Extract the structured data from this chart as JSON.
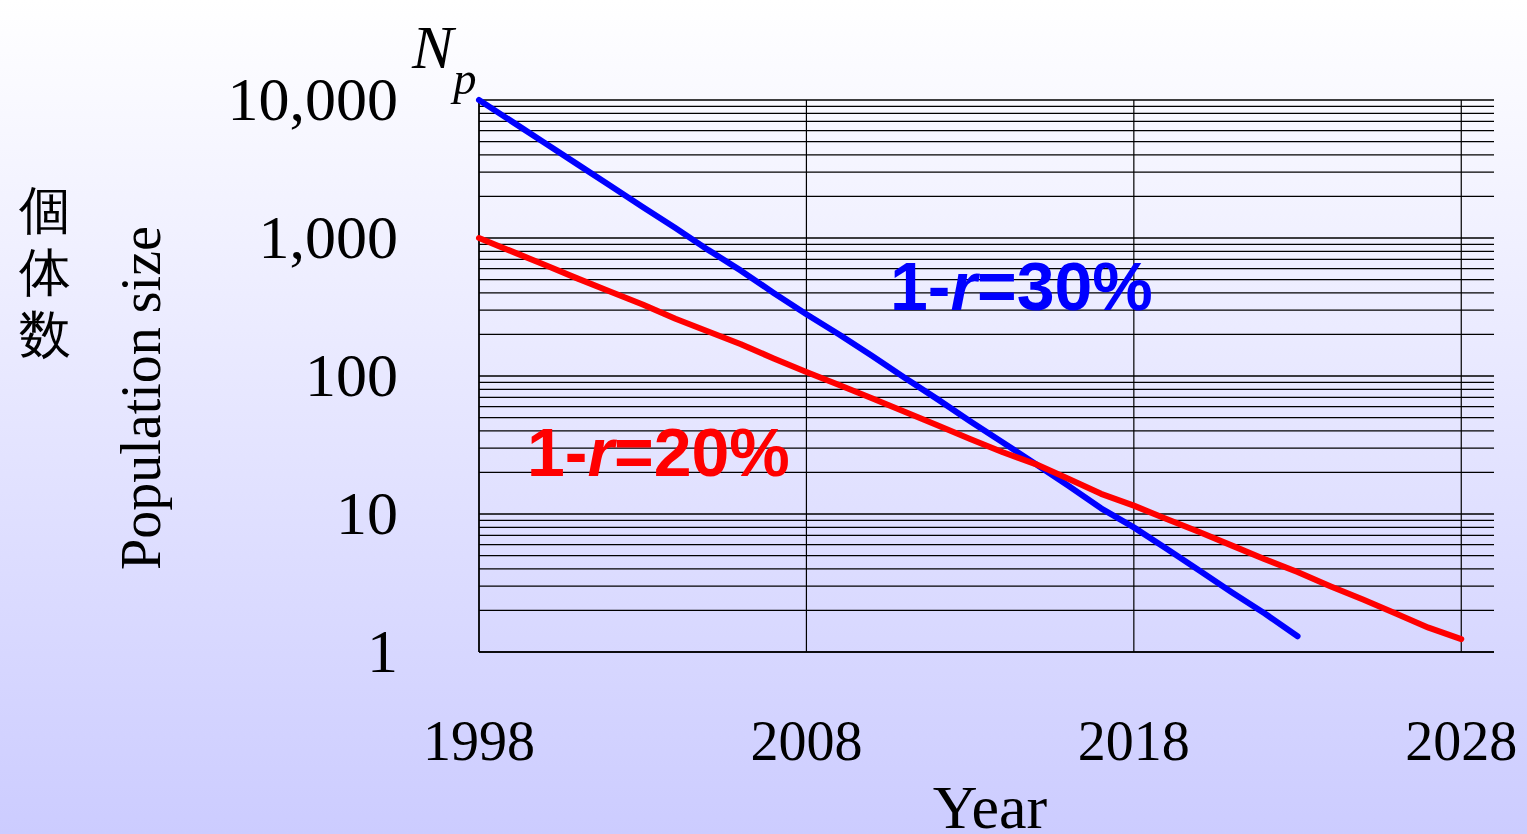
{
  "chart_data": {
    "type": "line",
    "xlabel": "Year",
    "ylabel": "Population size",
    "annotations": [
      "個体数",
      "*N*$_{p}$"
    ],
    "x": [
      1998,
      1999,
      2000,
      2001,
      2002,
      2003,
      2004,
      2005,
      2006,
      2007,
      2008,
      2009,
      2010,
      2011,
      2012,
      2013,
      2014,
      2015,
      2016,
      2017,
      2018,
      2019,
      2020,
      2021,
      2022,
      2023,
      2024,
      2025,
      2026,
      2027,
      2028
    ],
    "series": [
      {
        "name": "1-*r*=30%",
        "color": "#0000ff",
        "values": [
          10000,
          7000,
          4900,
          3430,
          2400,
          1680,
          1180,
          820,
          580,
          400,
          280,
          200,
          140,
          97,
          68,
          47,
          33,
          23,
          16,
          11,
          8,
          5.6,
          3.9,
          2.7,
          1.9,
          1.3,
          null,
          null,
          null,
          null,
          null
        ]
      },
      {
        "name": "1-*r*=20%",
        "color": "#ff0000",
        "values": [
          1000,
          800,
          640,
          510,
          410,
          330,
          260,
          210,
          170,
          134,
          107,
          86,
          69,
          55,
          44,
          35,
          28,
          23,
          18,
          14,
          11.5,
          9.2,
          7.4,
          5.9,
          4.7,
          3.8,
          3.0,
          2.4,
          1.9,
          1.5,
          1.24
        ]
      }
    ],
    "xlim": [
      1998,
      2029
    ],
    "ylim": [
      1,
      10000
    ],
    "log": "y",
    "grid": true,
    "legend": false,
    "xticks": [
      1998,
      2008,
      2018,
      2028
    ],
    "yticks": [
      1,
      10,
      100,
      {
        "value": 1000,
        "label": "1,000"
      },
      {
        "value": 10000,
        "label": "10,000"
      }
    ]
  }
}
